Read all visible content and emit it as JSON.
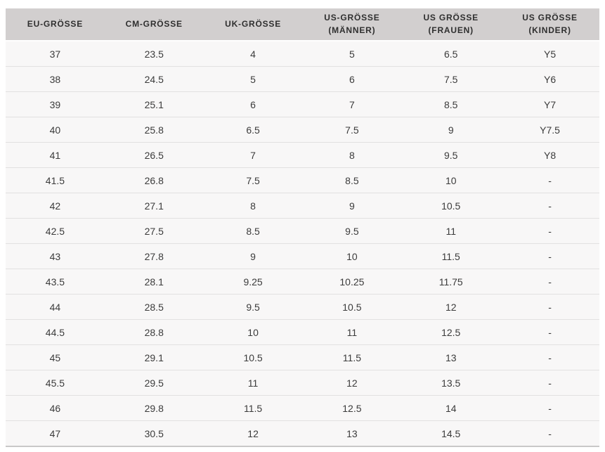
{
  "table": {
    "columns": [
      "EU-GRÖSSE",
      "CM-GRÖSSE",
      "UK-GRÖSSE",
      "US-GRÖSSE (MÄNNER)",
      "US GRÖSSE (FRAUEN)",
      "US GRÖSSE (KINDER)"
    ],
    "rows": [
      [
        "37",
        "23.5",
        "4",
        "5",
        "6.5",
        "Y5"
      ],
      [
        "38",
        "24.5",
        "5",
        "6",
        "7.5",
        "Y6"
      ],
      [
        "39",
        "25.1",
        "6",
        "7",
        "8.5",
        "Y7"
      ],
      [
        "40",
        "25.8",
        "6.5",
        "7.5",
        "9",
        "Y7.5"
      ],
      [
        "41",
        "26.5",
        "7",
        "8",
        "9.5",
        "Y8"
      ],
      [
        "41.5",
        "26.8",
        "7.5",
        "8.5",
        "10",
        "-"
      ],
      [
        "42",
        "27.1",
        "8",
        "9",
        "10.5",
        "-"
      ],
      [
        "42.5",
        "27.5",
        "8.5",
        "9.5",
        "11",
        "-"
      ],
      [
        "43",
        "27.8",
        "9",
        "10",
        "11.5",
        "-"
      ],
      [
        "43.5",
        "28.1",
        "9.25",
        "10.25",
        "11.75",
        "-"
      ],
      [
        "44",
        "28.5",
        "9.5",
        "10.5",
        "12",
        "-"
      ],
      [
        "44.5",
        "28.8",
        "10",
        "11",
        "12.5",
        "-"
      ],
      [
        "45",
        "29.1",
        "10.5",
        "11.5",
        "13",
        "-"
      ],
      [
        "45.5",
        "29.5",
        "11",
        "12",
        "13.5",
        "-"
      ],
      [
        "46",
        "29.8",
        "11.5",
        "12.5",
        "14",
        "-"
      ],
      [
        "47",
        "30.5",
        "12",
        "13",
        "14.5",
        "-"
      ]
    ],
    "colors": {
      "header_background": "#d2cfcf",
      "row_background": "#f8f7f7",
      "row_separator": "#e2e1e1",
      "table_bottom_border": "#c9c8c8",
      "header_text": "#2f2f2f",
      "cell_text": "#3b3b3b"
    }
  }
}
